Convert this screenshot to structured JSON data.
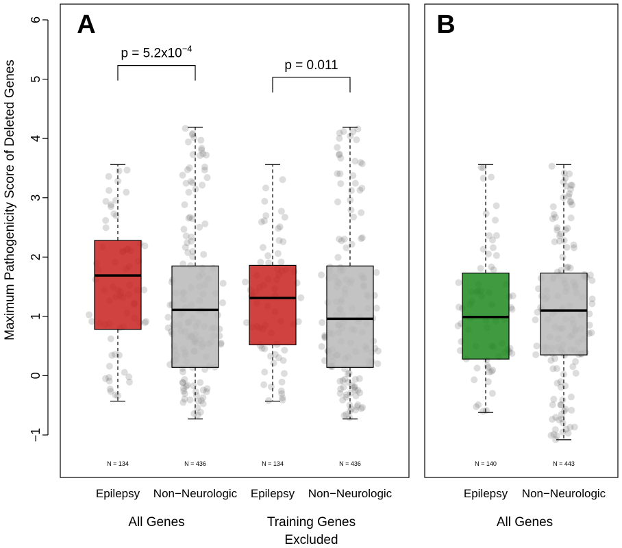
{
  "chart_data": {
    "type": "box",
    "ylabel": "Maximum Pathogenicity Score of Deleted Genes",
    "ylim": [
      -1.7,
      6.2
    ],
    "y_ticks": [
      -1,
      0,
      1,
      2,
      3,
      4,
      5,
      6
    ],
    "y_tick_labels": [
      "−1",
      "0",
      "1",
      "2",
      "3",
      "4",
      "5",
      "6"
    ],
    "colors": {
      "epilepsy_a": "#c8211f",
      "non_neurologic": "#b8b8b8",
      "epilepsy_b": "#1e8a1e",
      "points": "#666666"
    },
    "panels": [
      {
        "letter": "A",
        "groups": [
          {
            "label": "All Genes",
            "boxes": [
              {
                "category": "Epilepsy",
                "n_label": "N = 134",
                "color": "#c8211f",
                "whisker_low": -0.43,
                "q1": 0.78,
                "median": 1.69,
                "q3": 2.28,
                "whisker_high": 3.56
              },
              {
                "category": "Non−Neurologic",
                "n_label": "N = 436",
                "color": "#b8b8b8",
                "whisker_low": -0.73,
                "q1": 0.14,
                "median": 1.11,
                "q3": 1.85,
                "whisker_high": 4.19
              }
            ]
          },
          {
            "label": "Training Genes Excluded",
            "label_lines": [
              "Training Genes",
              "Excluded"
            ],
            "boxes": [
              {
                "category": "Epilepsy",
                "n_label": "N = 134",
                "color": "#c8211f",
                "whisker_low": -0.43,
                "q1": 0.52,
                "median": 1.31,
                "q3": 1.86,
                "whisker_high": 3.56
              },
              {
                "category": "Non−Neurologic",
                "n_label": "N = 436",
                "color": "#b8b8b8",
                "whisker_low": -0.73,
                "q1": 0.14,
                "median": 0.96,
                "q3": 1.85,
                "whisker_high": 4.19
              }
            ]
          }
        ],
        "annotations": [
          {
            "between": [
              0,
              1
            ],
            "text": "p = 5.2x10",
            "exponent": "−4",
            "y": 5.6
          },
          {
            "between": [
              2,
              3
            ],
            "text": "p = 0.011",
            "exponent": "",
            "y": 5.4
          }
        ]
      },
      {
        "letter": "B",
        "groups": [
          {
            "label": "All Genes",
            "boxes": [
              {
                "category": "Epilepsy",
                "n_label": "N = 140",
                "color": "#1e8a1e",
                "whisker_low": -0.62,
                "q1": 0.28,
                "median": 0.99,
                "q3": 1.73,
                "whisker_high": 3.56
              },
              {
                "category": "Non−Neurologic",
                "n_label": "N = 443",
                "color": "#b8b8b8",
                "whisker_low": -1.08,
                "q1": 0.35,
                "median": 1.1,
                "q3": 1.73,
                "whisker_high": 3.56
              }
            ]
          }
        ],
        "annotations": []
      }
    ]
  }
}
